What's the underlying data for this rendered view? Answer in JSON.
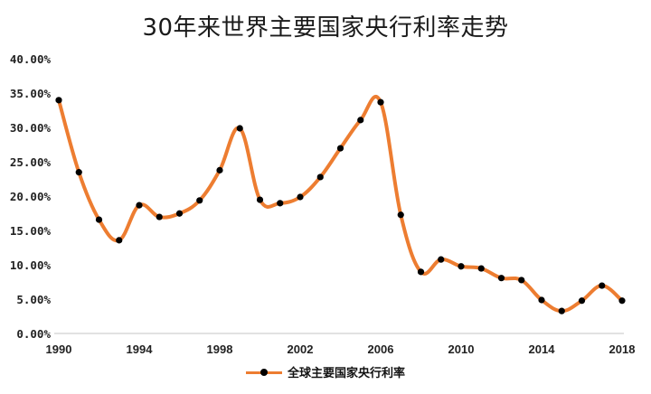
{
  "chart_data": {
    "type": "line",
    "title": "30年来世界主要国家央行利率走势",
    "xlabel": "",
    "ylabel": "",
    "x": [
      1990,
      1991,
      1992,
      1993,
      1994,
      1995,
      1996,
      1997,
      1998,
      1999,
      2000,
      2001,
      2002,
      2003,
      2004,
      2005,
      2006,
      2007,
      2008,
      2009,
      2010,
      2011,
      2012,
      2013,
      2014,
      2015,
      2016,
      2017,
      2018
    ],
    "series": [
      {
        "name": "全球主要国家央行利率",
        "color": "#ED7D31",
        "marker_color": "#000000",
        "values": [
          34.1,
          23.6,
          16.7,
          13.7,
          18.8,
          17.1,
          17.6,
          19.5,
          23.9,
          30.0,
          19.6,
          19.1,
          20.0,
          22.9,
          27.1,
          31.2,
          33.8,
          17.4,
          9.1,
          10.9,
          9.9,
          9.6,
          8.2,
          7.9,
          5.0,
          3.4,
          4.9,
          7.1,
          4.9
        ]
      }
    ],
    "ylim": [
      0,
      40
    ],
    "yticks": [
      0,
      5,
      10,
      15,
      20,
      25,
      30,
      35,
      40
    ],
    "ytick_labels": [
      "0.00%",
      "5.00%",
      "10.00%",
      "15.00%",
      "20.00%",
      "25.00%",
      "30.00%",
      "35.00%",
      "40.00%"
    ],
    "xtick_labels": [
      "1990",
      "1994",
      "1998",
      "2002",
      "2006",
      "2010",
      "2014",
      "2018"
    ],
    "grid": false,
    "legend_position": "bottom",
    "smooth": true
  }
}
